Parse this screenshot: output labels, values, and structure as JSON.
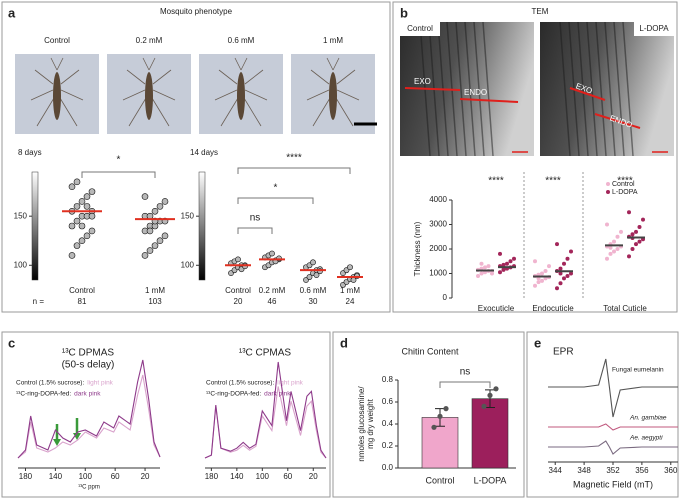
{
  "panels": {
    "a": {
      "label": "a",
      "title": "Mosquito phenotype",
      "photo_labels": [
        "Control",
        "0.2 mM",
        "0.6 mM",
        "1 mM"
      ]
    },
    "b": {
      "label": "b",
      "title": "TEM",
      "images": [
        {
          "label": "Control",
          "annotations": [
            "EXO",
            "ENDO"
          ]
        },
        {
          "label": "L-DOPA",
          "annotations": [
            "EXO",
            "ENDO"
          ]
        }
      ]
    },
    "c": {
      "label": "c"
    },
    "d": {
      "label": "d"
    },
    "e": {
      "label": "e"
    }
  },
  "chart_data": [
    {
      "type": "strip",
      "title": "8 days",
      "categories": [
        "Control",
        "1 mM"
      ],
      "n_label": "n =",
      "n": [
        81,
        103
      ],
      "ylim": [
        85,
        195
      ],
      "yticks": [
        100,
        150
      ],
      "color": "#b8b8b8",
      "mean_color": "#e03020",
      "means": [
        155,
        147
      ],
      "values": [
        [
          110,
          120,
          125,
          130,
          135,
          140,
          145,
          150,
          150,
          155,
          155,
          160,
          165,
          170,
          175,
          180,
          185,
          140,
          160,
          150
        ],
        [
          110,
          115,
          120,
          125,
          130,
          135,
          140,
          140,
          145,
          145,
          150,
          150,
          155,
          160,
          165,
          170,
          135,
          145
        ]
      ],
      "significance": [
        "*"
      ]
    },
    {
      "type": "strip",
      "title": "14 days",
      "categories": [
        "Control",
        "0.2 mM",
        "0.6 mM",
        "1 mM"
      ],
      "n": [
        20,
        46,
        30,
        24
      ],
      "ylim": [
        85,
        195
      ],
      "yticks": [
        100,
        150
      ],
      "color": "#b8b8b8",
      "mean_color": "#e03020",
      "means": [
        100,
        106,
        95,
        88
      ],
      "values": [
        [
          92,
          95,
          98,
          100,
          100,
          102,
          104,
          106,
          96,
          99
        ],
        [
          98,
          100,
          103,
          105,
          106,
          108,
          110,
          112,
          104,
          107
        ],
        [
          85,
          88,
          92,
          95,
          96,
          98,
          100,
          103,
          90,
          94
        ],
        [
          80,
          83,
          86,
          88,
          90,
          92,
          95,
          98,
          85,
          89
        ]
      ],
      "significance": [
        "ns",
        "*",
        "****"
      ]
    },
    {
      "type": "strip",
      "ylabel": "Thickness (nm)",
      "categories": [
        "Exocuticle",
        "Endocuticle",
        "Total Cuticle"
      ],
      "ylim": [
        0,
        4000
      ],
      "yticks": [
        0,
        1000,
        2000,
        3000,
        4000
      ],
      "mean_color": "#444444",
      "series": [
        {
          "name": "Control",
          "color": "#f0b4cf",
          "means": [
            1120,
            880,
            2150
          ],
          "values": [
            [
              900,
              1000,
              1050,
              1100,
              1100,
              1150,
              1200,
              1250,
              1300,
              1000,
              1150,
              1400
            ],
            [
              500,
              650,
              700,
              800,
              850,
              900,
              950,
              1000,
              1100,
              1300,
              1500,
              800
            ],
            [
              1600,
              1800,
              1900,
              2000,
              2100,
              2100,
              2200,
              2300,
              2500,
              2700,
              3000,
              2050
            ]
          ]
        },
        {
          "name": "L-DOPA",
          "color": "#a3265a",
          "means": [
            1260,
            1090,
            2470
          ],
          "values": [
            [
              1050,
              1150,
              1200,
              1250,
              1300,
              1300,
              1350,
              1400,
              1500,
              1600,
              1800,
              1250
            ],
            [
              400,
              600,
              800,
              900,
              1000,
              1100,
              1200,
              1400,
              1600,
              1900,
              2200,
              1000
            ],
            [
              1700,
              2000,
              2200,
              2300,
              2400,
              2500,
              2600,
              2700,
              2900,
              3200,
              3500,
              2450
            ]
          ]
        }
      ],
      "significance": [
        "****",
        "****",
        "****"
      ]
    },
    {
      "type": "line",
      "title": "¹³C DPMAS",
      "subtitle": "(50-s delay)",
      "xlabel": "¹³C ppm",
      "xlim": [
        190,
        0
      ],
      "xticks": [
        180,
        140,
        100,
        60,
        20
      ],
      "x": [
        190,
        180,
        173,
        165,
        150,
        140,
        130,
        120,
        110,
        100,
        85,
        75,
        62,
        55,
        40,
        30,
        23,
        15,
        8,
        0
      ],
      "series": [
        {
          "name": "Control (1.5% sucrose):",
          "color_name": "light pink",
          "color": "#d9a3cc",
          "values": [
            2,
            8,
            38,
            12,
            8,
            12,
            18,
            15,
            20,
            28,
            22,
            32,
            28,
            38,
            30,
            65,
            85,
            50,
            15,
            3
          ]
        },
        {
          "name": "¹³C-ring-DOPA-fed:",
          "color_name": "dark pink",
          "color": "#8e3a8a",
          "values": [
            2,
            10,
            44,
            15,
            10,
            30,
            22,
            18,
            28,
            30,
            24,
            38,
            32,
            44,
            36,
            78,
            100,
            60,
            18,
            3
          ]
        }
      ]
    },
    {
      "type": "line",
      "title": "¹³C CPMAS",
      "xlim": [
        190,
        0
      ],
      "xticks": [
        180,
        140,
        100,
        60,
        20
      ],
      "x": [
        190,
        180,
        173,
        165,
        150,
        140,
        130,
        120,
        110,
        100,
        85,
        75,
        62,
        55,
        40,
        30,
        23,
        15,
        8,
        0
      ],
      "series": [
        {
          "name": "Control (1.5% sucrose):",
          "color_name": "light pink",
          "color": "#d9a3cc",
          "values": [
            2,
            5,
            55,
            12,
            8,
            10,
            15,
            10,
            14,
            45,
            30,
            75,
            35,
            60,
            25,
            55,
            60,
            30,
            8,
            2
          ]
        },
        {
          "name": "¹³C-ring-DOPA-fed:",
          "color_name": "dark pink",
          "color": "#8e3a8a",
          "values": [
            2,
            5,
            56,
            12,
            9,
            12,
            18,
            12,
            16,
            50,
            35,
            100,
            40,
            70,
            30,
            65,
            70,
            35,
            10,
            2
          ]
        }
      ]
    },
    {
      "type": "bar",
      "title": "Chitin Content",
      "ylabel": [
        "nmoles glucosamine/",
        "mg dry weight"
      ],
      "categories": [
        "Control",
        "L-DOPA"
      ],
      "values": [
        0.46,
        0.63
      ],
      "errors": [
        0.08,
        0.08
      ],
      "points": [
        [
          0.37,
          0.47,
          0.54
        ],
        [
          0.56,
          0.66,
          0.72
        ]
      ],
      "colors": [
        "#f0a6cb",
        "#9c1f5c"
      ],
      "ylim": [
        0,
        0.8
      ],
      "yticks": [
        {
          "value": 0,
          "label": "0.0"
        },
        0.2,
        0.4,
        0.6,
        0.8
      ],
      "significance": [
        "ns"
      ]
    },
    {
      "type": "line",
      "title": "EPR",
      "xlabel": "Magnetic Field (mT)",
      "xlim": [
        343,
        361
      ],
      "xticks": [
        344,
        348,
        352,
        356,
        360
      ],
      "x": [
        343,
        348,
        350,
        351,
        351.5,
        352,
        353,
        356,
        361
      ],
      "series": [
        {
          "name": "Fungal eumelanin",
          "color": "#555555",
          "values": [
            0,
            0,
            2,
            28,
            0,
            -30,
            -3,
            0,
            0
          ]
        },
        {
          "name": "An. gambiae",
          "color": "#c0587e",
          "values": [
            0,
            0,
            0,
            3,
            0,
            -3,
            0,
            0,
            0
          ]
        },
        {
          "name": "Ae. aegypti",
          "color": "#7a6a80",
          "values": [
            0,
            0,
            1,
            6,
            0,
            -7,
            -1,
            0,
            0
          ]
        }
      ]
    }
  ]
}
